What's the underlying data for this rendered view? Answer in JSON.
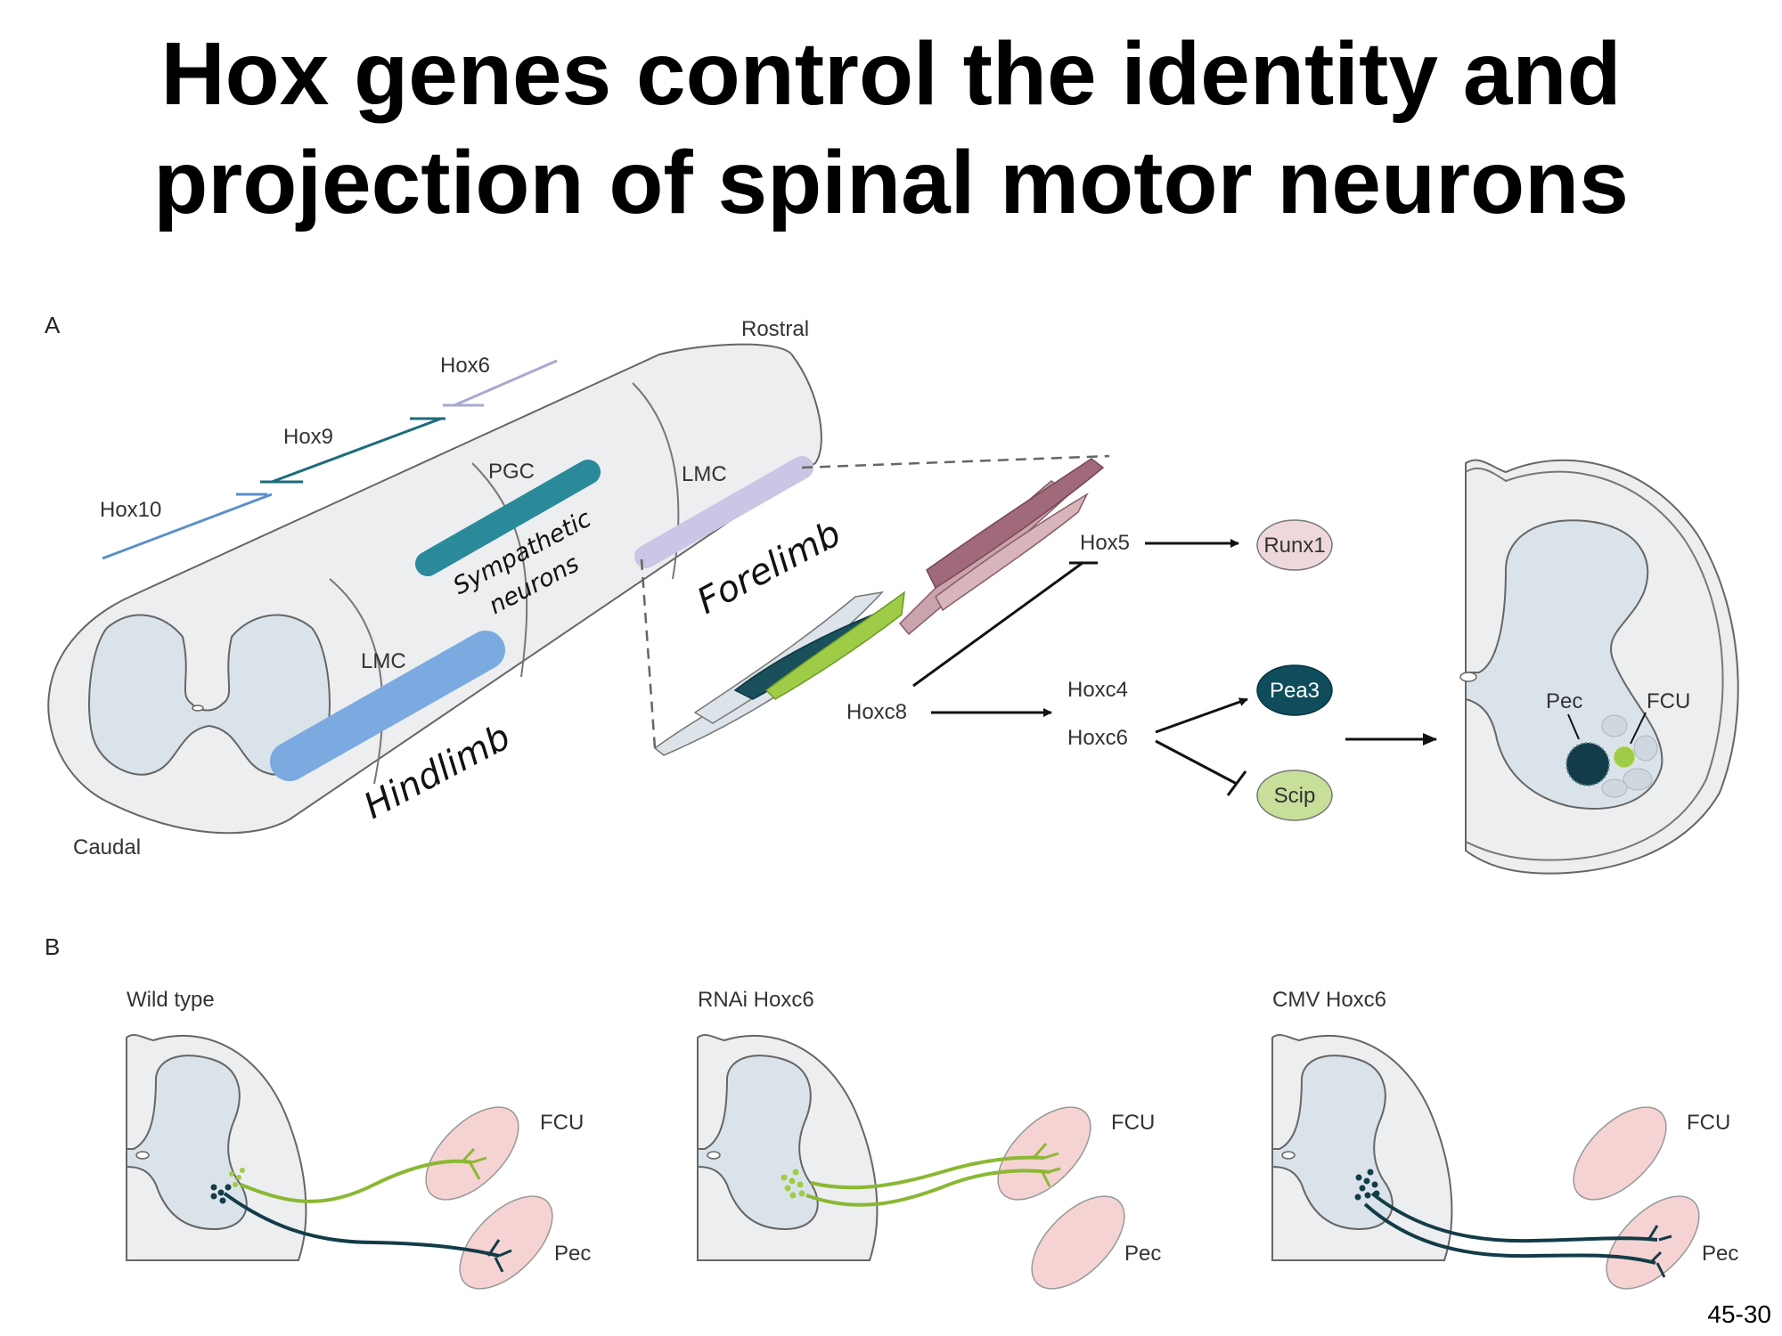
{
  "title": {
    "line1": "Hox genes control the identity and",
    "line2": "projection of spinal motor neurons"
  },
  "panel_a": {
    "panel_label": "A",
    "orientation": {
      "rostral": "Rostral",
      "caudal": "Caudal"
    },
    "hox_domains": {
      "hox10": "Hox10",
      "hox9": "Hox9",
      "hox6": "Hox6"
    },
    "columns": {
      "pgc": "PGC",
      "lmc_forelimb": "LMC",
      "lmc_hindlimb": "LMC"
    },
    "annotations": {
      "sympathetic_line1": "Sympathetic",
      "sympathetic_line2": "neurons",
      "forelimb": "Forelimb",
      "hindlimb": "Hindlimb"
    },
    "genes": {
      "hox5": "Hox5",
      "hoxc8": "Hoxc8",
      "hoxc4": "Hoxc4",
      "hoxc6": "Hoxc6",
      "runx1": "Runx1",
      "pea3": "Pea3",
      "scip": "Scip"
    },
    "pools": {
      "pec": "Pec",
      "fcu": "FCU"
    }
  },
  "panel_b": {
    "panel_label": "B",
    "conditions": [
      {
        "label": "Wild type",
        "fcu": "FCU",
        "pec": "Pec"
      },
      {
        "label": "RNAi Hoxc6",
        "fcu": "FCU",
        "pec": "Pec"
      },
      {
        "label": "CMV Hoxc6",
        "fcu": "FCU",
        "pec": "Pec"
      }
    ]
  },
  "colors": {
    "hox10": "#5b8fcc",
    "hox9": "#1e6b7b",
    "hox6": "#a8a8d0",
    "pgc": "#2a8a9a",
    "lmc_forelimb": "#c9c6e6",
    "lmc_hindlimb": "#7aaae0",
    "pea3": "#0f4d5c",
    "fcu_green": "#8ab833",
    "pec_dark": "#123c48",
    "runx1": "#eed8dc",
    "scip": "#c8df9a",
    "muscle_pink": "#f6d3d3"
  },
  "page_number": "45-30"
}
